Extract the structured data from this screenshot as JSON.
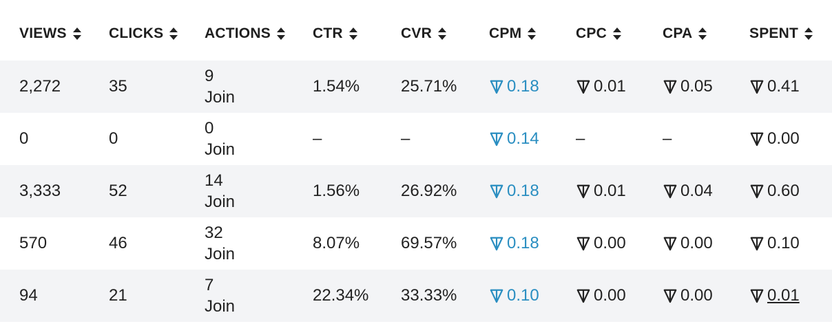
{
  "headers": [
    "VIEWS",
    "CLICKS",
    "ACTIONS",
    "CTR",
    "CVR",
    "CPM",
    "CPC",
    "CPA",
    "SPENT"
  ],
  "rows": [
    {
      "views": "2,272",
      "clicks": "35",
      "actions_count": "9",
      "actions_label": "Join",
      "ctr": "1.54%",
      "cvr": "25.71%",
      "cpm": "0.18",
      "cpc": "0.01",
      "cpa": "0.05",
      "spent": "0.41"
    },
    {
      "views": "0",
      "clicks": "0",
      "actions_count": "0",
      "actions_label": "Join",
      "ctr": "–",
      "cvr": "–",
      "cpm": "0.14",
      "cpc": "–",
      "cpa": "–",
      "spent": "0.00"
    },
    {
      "views": "3,333",
      "clicks": "52",
      "actions_count": "14",
      "actions_label": "Join",
      "ctr": "1.56%",
      "cvr": "26.92%",
      "cpm": "0.18",
      "cpc": "0.01",
      "cpa": "0.04",
      "spent": "0.60"
    },
    {
      "views": "570",
      "clicks": "46",
      "actions_count": "32",
      "actions_label": "Join",
      "ctr": "8.07%",
      "cvr": "69.57%",
      "cpm": "0.18",
      "cpc": "0.00",
      "cpa": "0.00",
      "spent": "0.10"
    },
    {
      "views": "94",
      "clicks": "21",
      "actions_count": "7",
      "actions_label": "Join",
      "ctr": "22.34%",
      "cvr": "33.33%",
      "cpm": "0.10",
      "cpc": "0.00",
      "cpa": "0.00",
      "spent": "0.01"
    }
  ],
  "icons": {
    "currency": "ton-currency-icon",
    "sort": "sort-icon"
  },
  "colors": {
    "cpm_link": "#2a8ec1",
    "shaded_row": "#f3f4f6",
    "text": "#222222"
  }
}
